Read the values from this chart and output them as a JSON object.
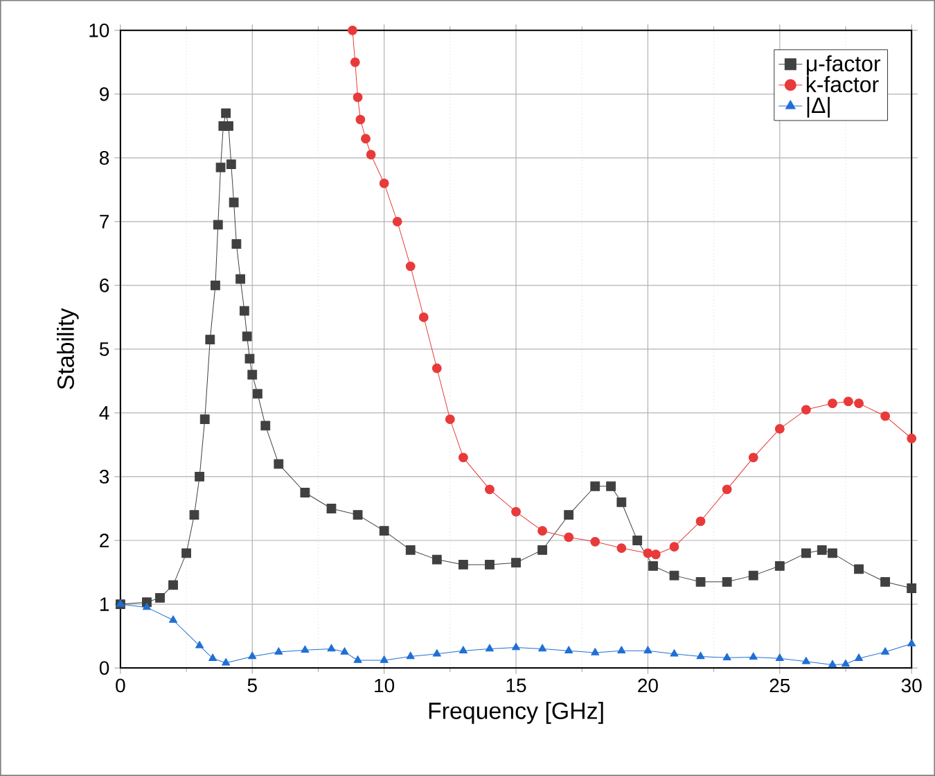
{
  "chart_data": {
    "type": "line",
    "xlabel": "Frequency [GHz]",
    "ylabel": "Stability",
    "xlim": [
      0,
      30
    ],
    "ylim": [
      0,
      10
    ],
    "xticks": [
      0,
      5,
      10,
      15,
      20,
      25,
      30
    ],
    "yticks": [
      0,
      1,
      2,
      3,
      4,
      5,
      6,
      7,
      8,
      9,
      10
    ],
    "grid": true,
    "legend": "top right",
    "series": [
      {
        "name": "μ-factor",
        "color": "#404040",
        "marker": "square",
        "line_style": "solid",
        "x": [
          0,
          1,
          1.5,
          2,
          2.5,
          2.8,
          3.0,
          3.2,
          3.4,
          3.6,
          3.7,
          3.8,
          3.9,
          4.0,
          4.1,
          4.2,
          4.3,
          4.4,
          4.55,
          4.7,
          4.8,
          4.9,
          5.0,
          5.2,
          5.5,
          6,
          7,
          8,
          9,
          10,
          11,
          12,
          13,
          14,
          15,
          16,
          17,
          18,
          18.6,
          19,
          19.6,
          20.2,
          21,
          22,
          23,
          24,
          25,
          26,
          26.6,
          27,
          28,
          29,
          30
        ],
        "values": [
          1.0,
          1.03,
          1.1,
          1.3,
          1.8,
          2.4,
          3.0,
          3.9,
          5.15,
          6.0,
          6.95,
          7.85,
          8.5,
          8.7,
          8.5,
          7.9,
          7.3,
          6.65,
          6.1,
          5.6,
          5.2,
          4.85,
          4.6,
          4.3,
          3.8,
          3.2,
          2.75,
          2.5,
          2.4,
          2.15,
          1.85,
          1.7,
          1.62,
          1.62,
          1.65,
          1.85,
          2.4,
          2.85,
          2.85,
          2.6,
          2.0,
          1.6,
          1.45,
          1.35,
          1.35,
          1.45,
          1.6,
          1.8,
          1.85,
          1.8,
          1.55,
          1.35,
          1.25
        ]
      },
      {
        "name": "k-factor",
        "color": "#e83a3a",
        "marker": "circle",
        "line_style": "solid",
        "x": [
          8.8,
          8.9,
          9.0,
          9.1,
          9.3,
          9.5,
          10,
          10.5,
          11,
          11.5,
          12,
          12.5,
          13,
          14,
          15,
          16,
          17,
          18,
          19,
          20,
          20.3,
          21,
          22,
          23,
          24,
          25,
          26,
          27,
          27.6,
          28,
          29,
          30
        ],
        "values": [
          10,
          9.5,
          8.95,
          8.6,
          8.3,
          8.05,
          7.6,
          7.0,
          6.3,
          5.5,
          4.7,
          3.9,
          3.3,
          2.8,
          2.45,
          2.15,
          2.05,
          1.98,
          1.88,
          1.8,
          1.78,
          1.9,
          2.3,
          2.8,
          3.3,
          3.75,
          4.05,
          4.15,
          4.18,
          4.15,
          3.95,
          3.6
        ]
      },
      {
        "name": "|Δ|",
        "color": "#1f6fd6",
        "marker": "triangle",
        "line_style": "solid",
        "x": [
          0,
          1,
          2,
          3,
          3.5,
          4,
          5,
          6,
          7,
          8,
          8.5,
          9,
          10,
          11,
          12,
          13,
          14,
          15,
          16,
          17,
          18,
          19,
          20,
          21,
          22,
          23,
          24,
          25,
          26,
          27,
          27.5,
          28,
          29,
          30
        ],
        "values": [
          1.0,
          0.95,
          0.75,
          0.35,
          0.15,
          0.08,
          0.18,
          0.25,
          0.28,
          0.3,
          0.25,
          0.12,
          0.12,
          0.18,
          0.22,
          0.27,
          0.3,
          0.32,
          0.3,
          0.27,
          0.24,
          0.27,
          0.27,
          0.22,
          0.18,
          0.16,
          0.17,
          0.15,
          0.1,
          0.05,
          0.06,
          0.15,
          0.25,
          0.38
        ]
      }
    ]
  }
}
